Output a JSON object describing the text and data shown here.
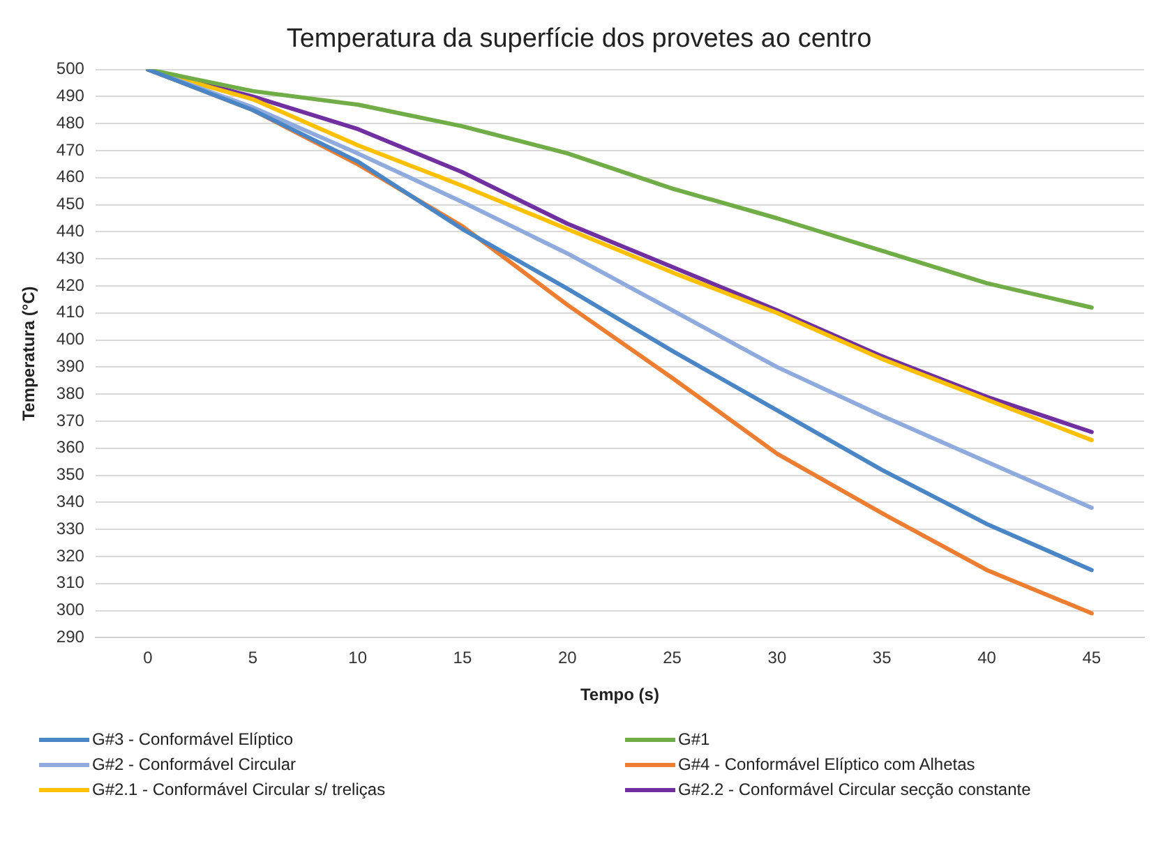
{
  "chart_data": {
    "type": "line",
    "title": "Temperatura da superfície dos provetes ao centro",
    "xlabel": "Tempo (s)",
    "ylabel": "Temperatura (°C)",
    "categories": [
      "0",
      "5",
      "10",
      "15",
      "20",
      "25",
      "30",
      "35",
      "40",
      "45"
    ],
    "series": [
      {
        "name": "G#3 - Conformável Elíptico",
        "color": "#4a86c5",
        "values": [
          500,
          485,
          466,
          441,
          419,
          396,
          374,
          352,
          332,
          315
        ]
      },
      {
        "name": "G#1",
        "color": "#70ad47",
        "values": [
          500,
          492,
          487,
          479,
          469,
          456,
          445,
          433,
          421,
          412
        ]
      },
      {
        "name": "G#2 - Conformável Circular",
        "color": "#8faadc",
        "values": [
          500,
          486,
          469,
          451,
          432,
          411,
          390,
          372,
          355,
          338
        ]
      },
      {
        "name": "G#4 - Conformável Elíptico com Alhetas",
        "color": "#ed7d31",
        "values": [
          500,
          485,
          465,
          442,
          413,
          386,
          358,
          336,
          315,
          299
        ]
      },
      {
        "name": "G#2.1 - Conformável Circular s/ treliças",
        "color": "#ffc000",
        "values": [
          500,
          489,
          472,
          457,
          441,
          425,
          410,
          393,
          378,
          363
        ]
      },
      {
        "name": "G#2.2 - Conformável Circular secção constante",
        "color": "#7030a0",
        "values": [
          500,
          490,
          478,
          462,
          443,
          427,
          411,
          394,
          379,
          366
        ]
      }
    ],
    "ylim": [
      290,
      500
    ],
    "yticks": [
      290,
      300,
      310,
      320,
      330,
      340,
      350,
      360,
      370,
      380,
      390,
      400,
      410,
      420,
      430,
      440,
      450,
      460,
      470,
      480,
      490,
      500
    ],
    "grid": "y",
    "legend": "bottom",
    "marker": "none",
    "line_style": "solid"
  }
}
